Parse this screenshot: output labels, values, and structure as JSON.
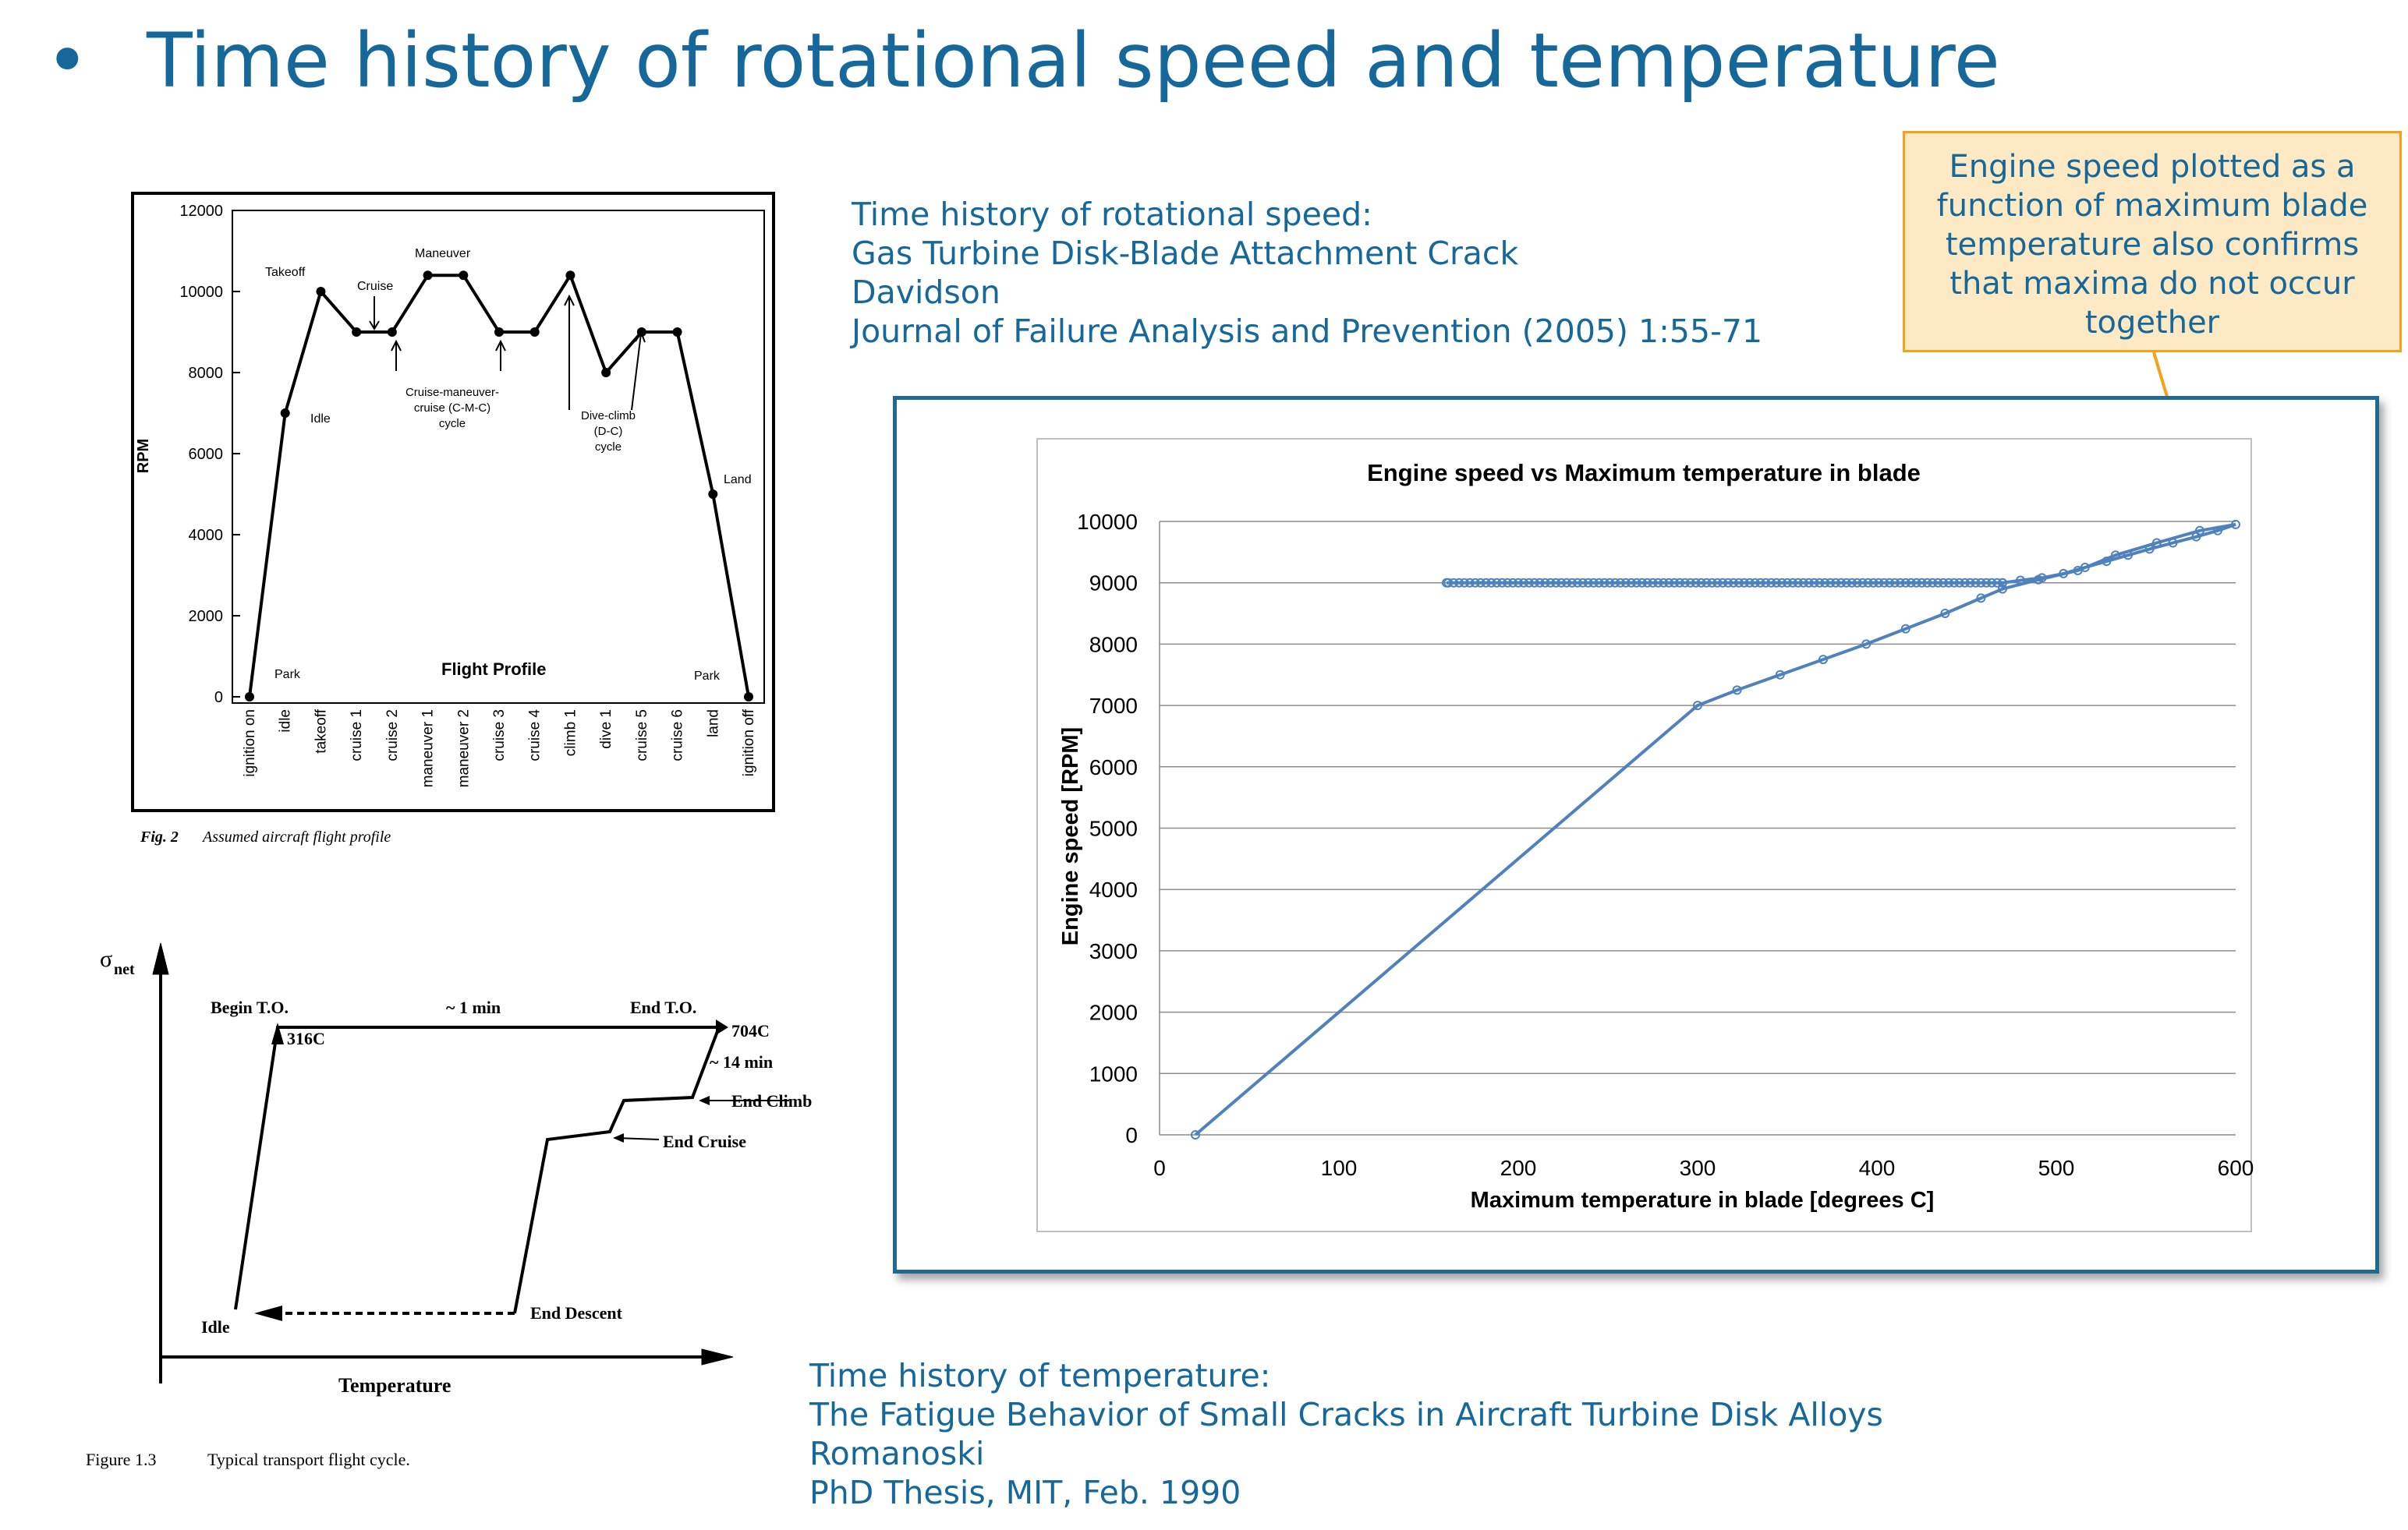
{
  "slide": {
    "bullet": "•",
    "title": "Time history of rotational speed and temperature"
  },
  "ref_speed": {
    "line1": "Time history of rotational speed:",
    "line2": "Gas Turbine Disk-Blade Attachment Crack",
    "line3": "Davidson",
    "line4": "Journal of Failure Analysis and Prevention (2005) 1:55-71"
  },
  "ref_temp": {
    "line1": "Time history of temperature:",
    "line2": "The Fatigue Behavior of Small Cracks in Aircraft Turbine Disk Alloys",
    "line3": "Romanoski",
    "line4": "PhD Thesis, MIT, Feb. 1990"
  },
  "callout": {
    "line1": "Engine speed plotted as a",
    "line2": "function of maximum blade",
    "line3": "temperature also confirms",
    "line4": "that maxima do not occur",
    "line5": "together"
  },
  "flight_profile": {
    "ylabel": "RPM",
    "yticks": [
      "12000",
      "10000",
      "8000",
      "6000",
      "4000",
      "2000",
      "0"
    ],
    "xticks": [
      "ignition on",
      "idle",
      "takeoff",
      "cruise 1",
      "cruise 2",
      "maneuver 1",
      "maneuver 2",
      "cruise 3",
      "cruise 4",
      "climb 1",
      "dive 1",
      "cruise 5",
      "cruise 6",
      "land",
      "ignition off"
    ],
    "values": [
      0,
      7000,
      10000,
      9000,
      9000,
      10400,
      10400,
      9000,
      9000,
      10400,
      8000,
      9000,
      9000,
      5000,
      0
    ],
    "labels": {
      "takeoff": "Takeoff",
      "cruise": "Cruise",
      "maneuver": "Maneuver",
      "idle": "Idle",
      "land": "Land",
      "park_left": "Park",
      "park_right": "Park",
      "flight_profile": "Flight   Profile",
      "cmc1": "Cruise-maneuver-",
      "cmc2": "cruise (C-M-C)",
      "cmc3": "cycle",
      "dc1": "Dive-climb",
      "dc2": "(D-C)",
      "dc3": "cycle"
    },
    "caption_fig": "Fig. 2",
    "caption": "Assumed aircraft flight profile"
  },
  "flight_cycle": {
    "sigma": "σ",
    "sigma_sub": "net",
    "xlabel": "Temperature",
    "begin_to": "Begin T.O.",
    "duration_1": "~ 1 min",
    "end_to": "End T.O.",
    "temp_316": "316C",
    "temp_704": "704C",
    "duration_14": "~ 14 min",
    "end_climb": "End Climb",
    "end_cruise": "End Cruise",
    "end_descent": "End Descent",
    "idle": "Idle",
    "caption_fig": "Figure 1.3",
    "caption": "Typical transport flight cycle."
  },
  "chart_data": {
    "type": "scatter",
    "title": "Engine speed  vs  Maximum temperature in blade",
    "xlabel": "Maximum temperature in blade [degrees C]",
    "ylabel": "Engine speed [RPM]",
    "xlim": [
      0,
      600
    ],
    "ylim": [
      0,
      10000
    ],
    "xticks": [
      0,
      100,
      200,
      300,
      400,
      500,
      600
    ],
    "yticks": [
      0,
      1000,
      2000,
      3000,
      4000,
      5000,
      6000,
      7000,
      8000,
      9000,
      10000
    ],
    "grid": true,
    "series": [
      {
        "name": "engine speed",
        "color": "#4f81bd",
        "x": [
          20,
          300,
          322,
          346,
          370,
          394,
          416,
          438,
          458,
          470,
          490,
          512,
          533,
          556,
          580,
          600,
          590,
          578,
          565,
          552,
          540,
          528,
          516,
          504,
          492,
          480,
          470,
          470,
          467,
          464,
          461,
          458,
          455,
          452,
          449,
          446,
          443,
          440,
          437,
          434,
          431,
          428,
          425,
          422,
          419,
          416,
          413,
          410,
          407,
          404,
          401,
          398,
          395,
          392,
          389,
          386,
          383,
          380,
          377,
          374,
          371,
          368,
          365,
          362,
          359,
          356,
          353,
          350,
          347,
          344,
          341,
          338,
          335,
          332,
          329,
          326,
          323,
          320,
          317,
          314,
          311,
          308,
          305,
          302,
          299,
          296,
          293,
          290,
          287,
          284,
          281,
          278,
          275,
          272,
          269,
          266,
          263,
          260,
          257,
          254,
          251,
          248,
          245,
          242,
          239,
          236,
          233,
          230,
          227,
          224,
          221,
          218,
          215,
          212,
          209,
          206,
          203,
          200,
          197,
          194,
          191,
          188,
          185,
          182,
          179,
          176,
          173,
          170,
          167,
          164,
          161,
          160
        ],
        "y": [
          0,
          7000,
          7250,
          7500,
          7750,
          8000,
          8250,
          8500,
          8750,
          8900,
          9050,
          9200,
          9450,
          9650,
          9850,
          9950,
          9850,
          9750,
          9650,
          9550,
          9450,
          9350,
          9250,
          9150,
          9080,
          9040,
          9000,
          9000,
          9000,
          9000,
          9000,
          9000,
          9000,
          9000,
          9000,
          9000,
          9000,
          9000,
          9000,
          9000,
          9000,
          9000,
          9000,
          9000,
          9000,
          9000,
          9000,
          9000,
          9000,
          9000,
          9000,
          9000,
          9000,
          9000,
          9000,
          9000,
          9000,
          9000,
          9000,
          9000,
          9000,
          9000,
          9000,
          9000,
          9000,
          9000,
          9000,
          9000,
          9000,
          9000,
          9000,
          9000,
          9000,
          9000,
          9000,
          9000,
          9000,
          9000,
          9000,
          9000,
          9000,
          9000,
          9000,
          9000,
          9000,
          9000,
          9000,
          9000,
          9000,
          9000,
          9000,
          9000,
          9000,
          9000,
          9000,
          9000,
          9000,
          9000,
          9000,
          9000,
          9000,
          9000,
          9000,
          9000,
          9000,
          9000,
          9000,
          9000,
          9000,
          9000,
          9000,
          9000,
          9000,
          9000,
          9000,
          9000,
          9000,
          9000,
          9000,
          9000,
          9000,
          9000,
          9000,
          9000,
          9000,
          9000,
          9000,
          9000,
          9000,
          9000,
          9000,
          9000
        ]
      }
    ]
  }
}
